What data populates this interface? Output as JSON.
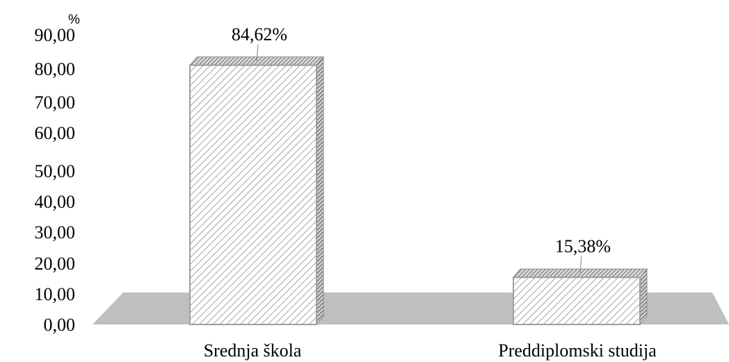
{
  "chart_data": {
    "type": "bar",
    "style": "3d-column",
    "y_unit": "%",
    "categories": [
      "Srednja škola",
      "Preddiplomski studija"
    ],
    "values": [
      84.62,
      15.38
    ],
    "data_labels": [
      "84,62%",
      "15,38%"
    ],
    "ylim": [
      0,
      90
    ],
    "y_ticks": [
      "0,00",
      "10,00",
      "20,00",
      "30,00",
      "40,00",
      "50,00",
      "60,00",
      "70,00",
      "80,00",
      "90,00"
    ],
    "grid": false,
    "legend": "none",
    "colors": {
      "floor": "#bfbfbf",
      "bar_front_fill": "#ffffff",
      "bar_front_hatch": "#8c8c8c",
      "bar_top": "#9a9a9a",
      "bar_side": "#8a8a8a",
      "bar_edge": "#9e9e9e"
    }
  }
}
